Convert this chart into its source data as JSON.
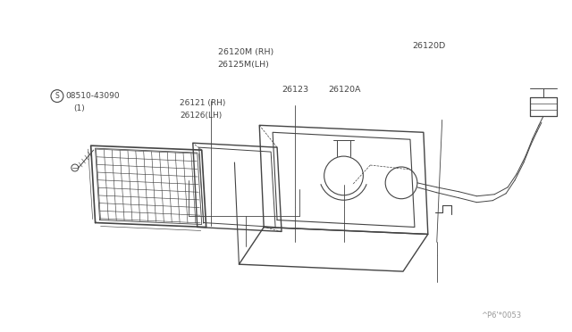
{
  "bg_color": "#ffffff",
  "line_color": "#444444",
  "text_color": "#444444",
  "watermark": "^P6'*0053",
  "labels": {
    "26120M_RH": "26120M (RH)",
    "26125M_LH": "26125M(LH)",
    "26120D": "26120D",
    "08510": "08510-43090",
    "paren1": "(1)",
    "26123": "26123",
    "26120A": "26120A",
    "26121_RH": "26121 (RH)",
    "26126_LH": "26126(LH)"
  }
}
